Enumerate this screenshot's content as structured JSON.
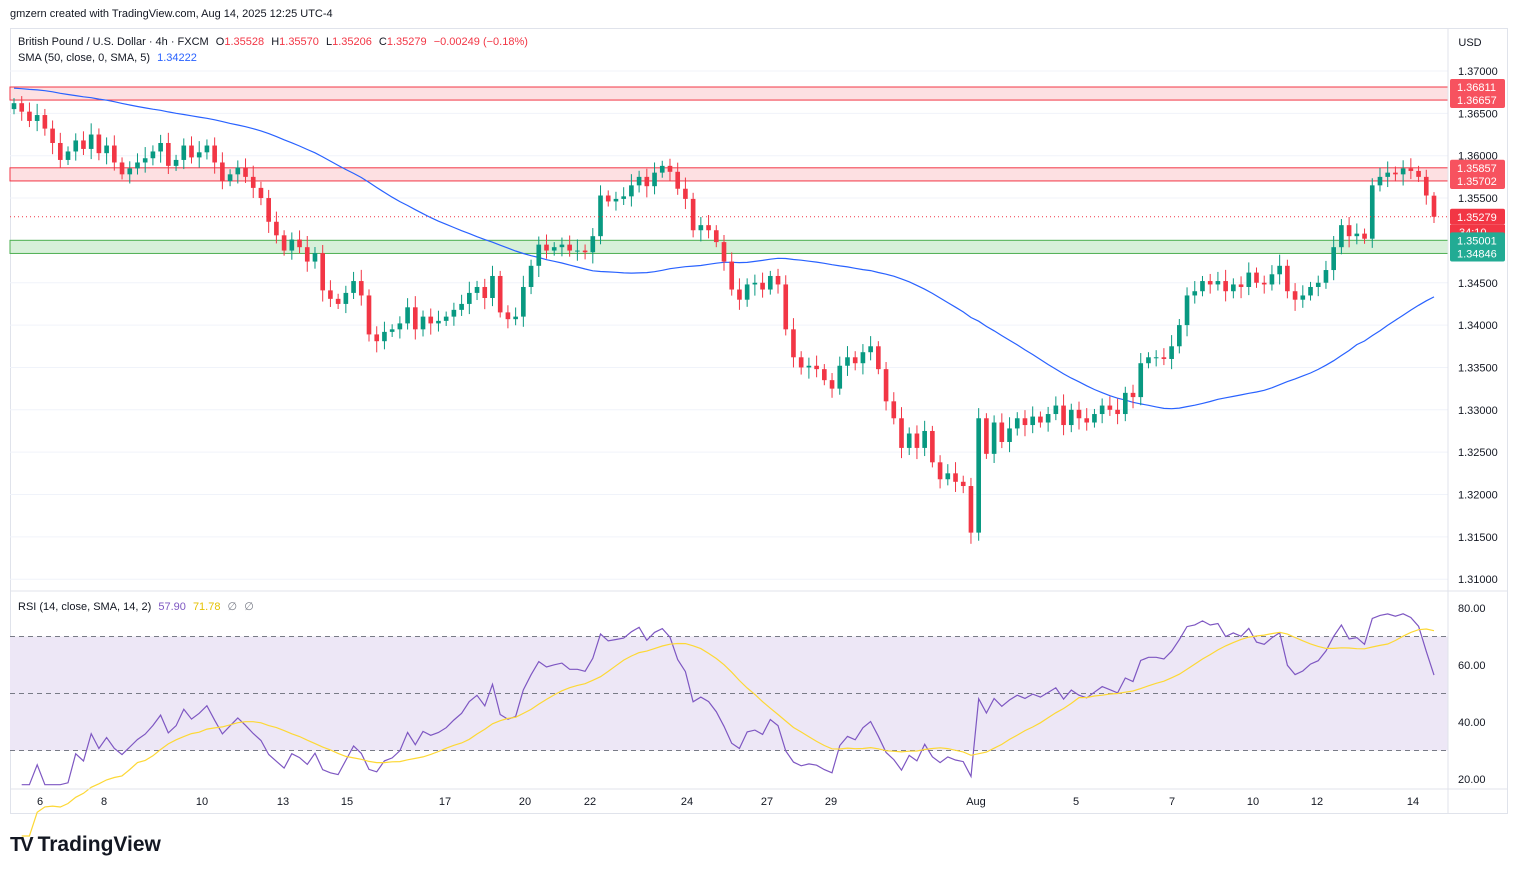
{
  "header": {
    "attribution": "gmzern created with TradingView.com, Aug 14, 2025 12:25 UTC-4"
  },
  "legend": {
    "symbol": "British Pound / U.S. Dollar · 4h · FXCM",
    "open_label": "O",
    "open": "1.35528",
    "high_label": "H",
    "high": "1.35570",
    "low_label": "L",
    "low": "1.35206",
    "close_label": "C",
    "close": "1.35279",
    "change": "−0.00249 (−0.18%)",
    "sma_label": "SMA (50, close, 0, SMA, 5)",
    "sma_value": "1.34222",
    "rsi_label": "RSI (14, close, SMA, 14, 2)",
    "rsi_value": "57.90",
    "rsi_ma_value": "71.78",
    "rsi_extra1": "∅",
    "rsi_extra2": "∅"
  },
  "currency": "USD",
  "price_axis": {
    "ticks": [
      "1.37000",
      "1.36500",
      "1.36000",
      "1.35500",
      "1.35000",
      "1.34500",
      "1.34000",
      "1.33500",
      "1.33000",
      "1.32500",
      "1.32000",
      "1.31500",
      "1.31000"
    ],
    "tick_values": [
      1.37,
      1.365,
      1.36,
      1.355,
      1.35,
      1.345,
      1.34,
      1.335,
      1.33,
      1.325,
      1.32,
      1.315,
      1.31
    ],
    "labels": [
      {
        "text": "1.36811",
        "value": 1.36811,
        "bg": "#f7525f"
      },
      {
        "text": "1.36657",
        "value": 1.36657,
        "bg": "#f7525f"
      },
      {
        "text": "1.35857",
        "value": 1.35857,
        "bg": "#f7525f"
      },
      {
        "text": "1.35702",
        "value": 1.35702,
        "bg": "#f7525f"
      },
      {
        "text": "1.35279",
        "value": 1.35279,
        "bg": "#f23645"
      },
      {
        "text": "1.35001",
        "value": 1.35001,
        "bg": "#22ab94"
      },
      {
        "text": "1.34846",
        "value": 1.34846,
        "bg": "#22ab94"
      }
    ],
    "countdown": "34:10"
  },
  "rsi_axis": {
    "ticks": [
      "80.00",
      "60.00",
      "40.00",
      "20.00"
    ],
    "tick_values": [
      80,
      60,
      40,
      20
    ]
  },
  "time_axis": [
    "6",
    "8",
    "10",
    "13",
    "15",
    "17",
    "20",
    "22",
    "24",
    "27",
    "29",
    "Aug",
    "5",
    "7",
    "10",
    "12",
    "14"
  ],
  "colors": {
    "up": "#089981",
    "down": "#f23645",
    "sma": "#2962ff",
    "rsi": "#7e57c2",
    "rsi_ma": "#fdd835",
    "resistance_fill": "#fde0e2",
    "resistance_line": "#f23645",
    "support_fill": "#d7f0d9",
    "support_line": "#4caf50",
    "rsi_band": "#ede7f6"
  },
  "zones": [
    {
      "type": "resistance",
      "top": 1.36811,
      "bottom": 1.36657
    },
    {
      "type": "resistance",
      "top": 1.35857,
      "bottom": 1.35702
    },
    {
      "type": "support",
      "top": 1.35001,
      "bottom": 1.34846
    }
  ],
  "chart_data": {
    "type": "candlestick",
    "instrument": "British Pound / U.S. Dollar",
    "timeframe": "4h",
    "ylim": [
      1.308,
      1.3725
    ],
    "last_close": 1.35279,
    "closes": [
      1.3662,
      1.3652,
      1.3641,
      1.3648,
      1.3632,
      1.3615,
      1.3595,
      1.3605,
      1.3618,
      1.3608,
      1.3625,
      1.3603,
      1.3612,
      1.3592,
      1.3578,
      1.3585,
      1.3592,
      1.3597,
      1.3605,
      1.3615,
      1.3588,
      1.3595,
      1.3612,
      1.3598,
      1.3604,
      1.3612,
      1.3592,
      1.357,
      1.3578,
      1.3586,
      1.3575,
      1.3562,
      1.355,
      1.3522,
      1.3506,
      1.3488,
      1.3501,
      1.3492,
      1.3475,
      1.3485,
      1.3441,
      1.3431,
      1.3425,
      1.3438,
      1.3452,
      1.3435,
      1.3389,
      1.3381,
      1.3392,
      1.3395,
      1.3402,
      1.3421,
      1.3395,
      1.341,
      1.3402,
      1.3405,
      1.341,
      1.3418,
      1.3425,
      1.3438,
      1.3445,
      1.3432,
      1.3458,
      1.3415,
      1.3407,
      1.341,
      1.3445,
      1.347,
      1.3495,
      1.3488,
      1.3492,
      1.3495,
      1.3488,
      1.3488,
      1.3486,
      1.3505,
      1.3553,
      1.3546,
      1.3549,
      1.3552,
      1.3565,
      1.3575,
      1.3564,
      1.358,
      1.3588,
      1.3581,
      1.3561,
      1.3549,
      1.3512,
      1.3518,
      1.3512,
      1.3498,
      1.3475,
      1.3442,
      1.343,
      1.3448,
      1.345,
      1.3442,
      1.3458,
      1.3448,
      1.3395,
      1.3362,
      1.335,
      1.3352,
      1.3348,
      1.3335,
      1.3325,
      1.3352,
      1.3362,
      1.3355,
      1.3368,
      1.3375,
      1.3348,
      1.331,
      1.329,
      1.3255,
      1.3272,
      1.3255,
      1.3275,
      1.3238,
      1.3218,
      1.3225,
      1.3215,
      1.321,
      1.3155,
      1.329,
      1.3248,
      1.3285,
      1.3262,
      1.3278,
      1.329,
      1.3282,
      1.3292,
      1.3285,
      1.3295,
      1.3305,
      1.3282,
      1.33,
      1.329,
      1.3285,
      1.3295,
      1.3305,
      1.33,
      1.3295,
      1.332,
      1.3315,
      1.3355,
      1.3362,
      1.3362,
      1.336,
      1.3375,
      1.34,
      1.3435,
      1.344,
      1.3452,
      1.3448,
      1.3452,
      1.344,
      1.3448,
      1.3445,
      1.3462,
      1.345,
      1.3448,
      1.346,
      1.347,
      1.344,
      1.343,
      1.3435,
      1.3445,
      1.345,
      1.3465,
      1.3492,
      1.3518,
      1.3505,
      1.3508,
      1.3502,
      1.3565,
      1.3575,
      1.358,
      1.3578,
      1.3585,
      1.3582,
      1.3575,
      1.3553,
      1.35279
    ]
  }
}
